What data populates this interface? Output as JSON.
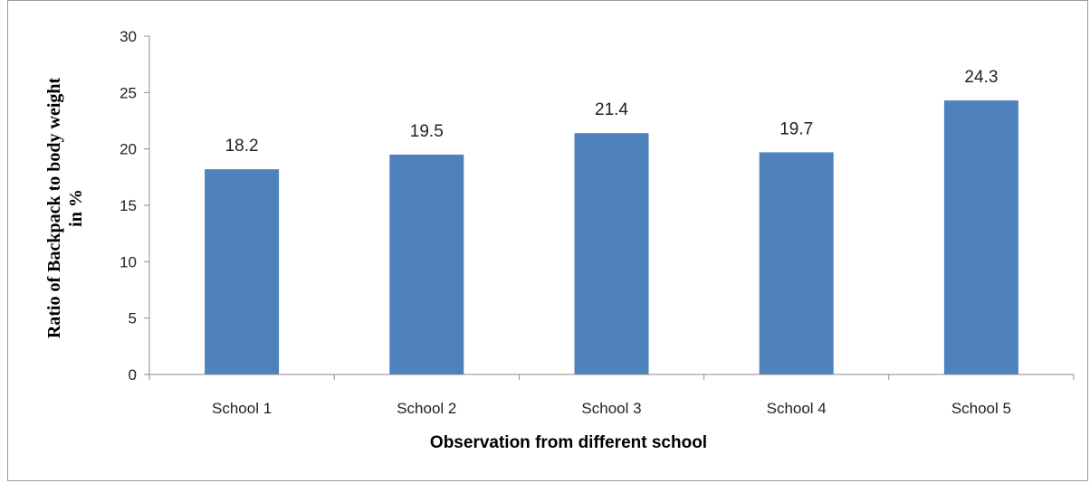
{
  "chart_data": {
    "type": "bar",
    "categories": [
      "School 1",
      "School 2",
      "School 3",
      "School 4",
      "School 5"
    ],
    "values": [
      18.2,
      19.5,
      21.4,
      19.7,
      24.3
    ],
    "data_labels": [
      "18.2",
      "19.5",
      "21.4",
      "19.7",
      "24.3"
    ],
    "xlabel": "Observation from different school",
    "ylabel_lines": [
      "Ratio of Backpack to body weight",
      "in %"
    ],
    "ylim": [
      0,
      30
    ],
    "yticks": [
      0,
      5,
      10,
      15,
      20,
      25,
      30
    ],
    "grid": false,
    "legend": "none",
    "bar_color": "#4f81bd"
  }
}
